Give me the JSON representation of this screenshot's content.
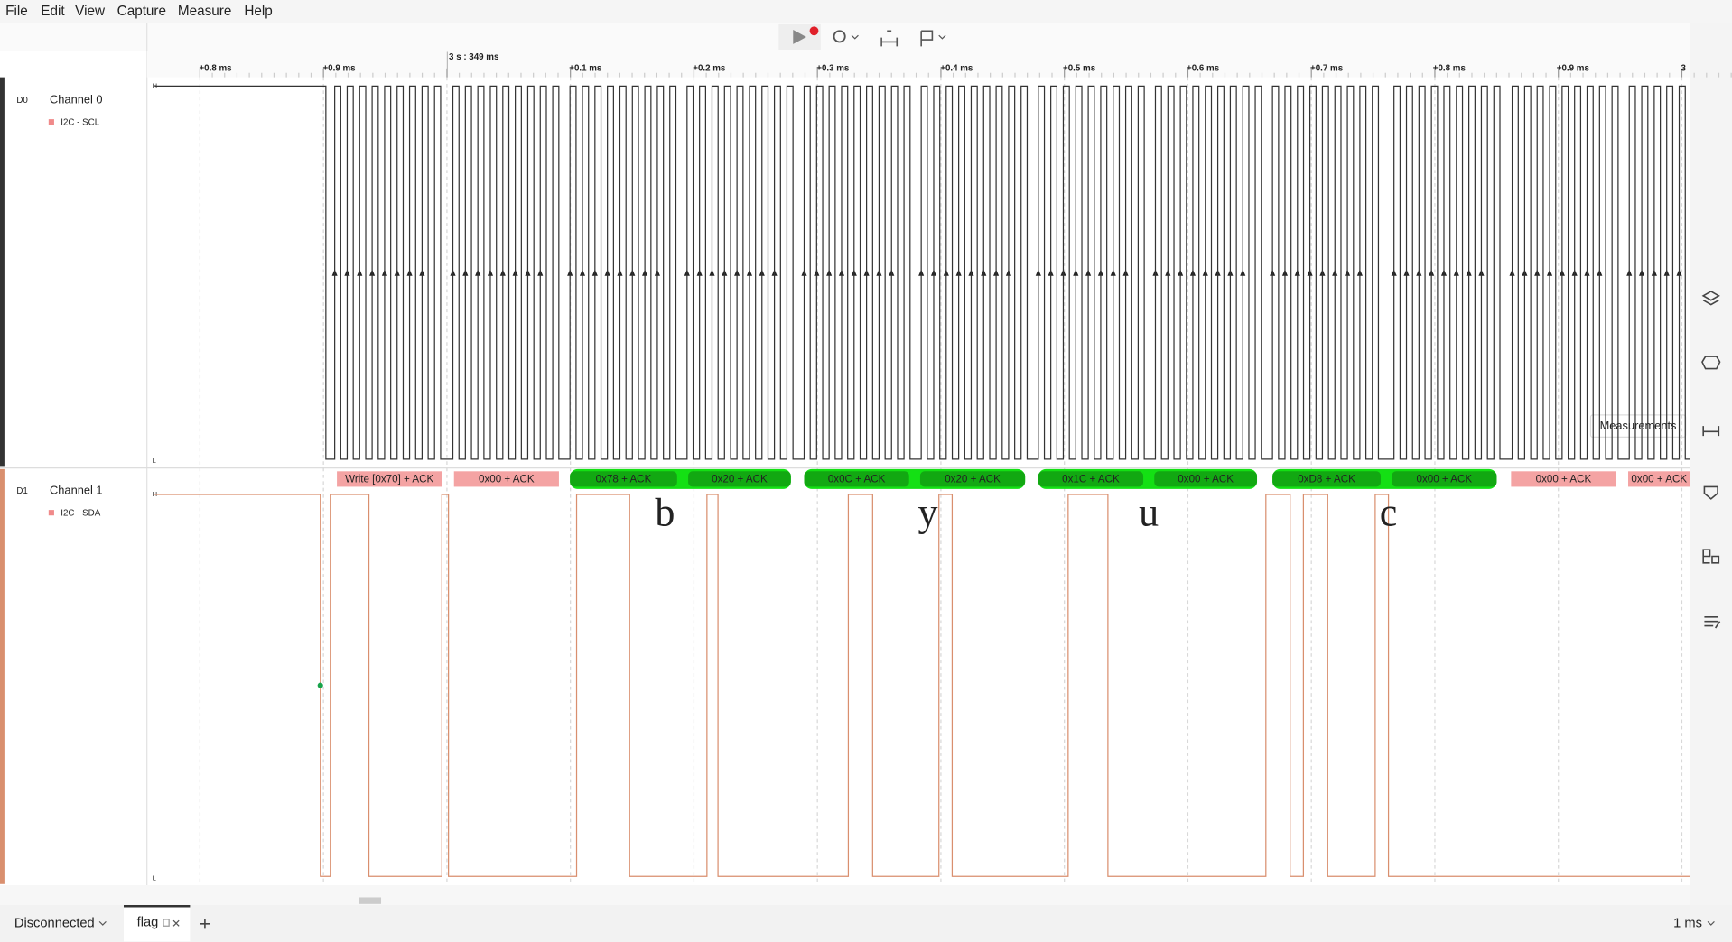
{
  "menu": [
    "File",
    "Edit",
    "View",
    "Capture",
    "Measure",
    "Help"
  ],
  "timeline": {
    "cursor_label": "3 s : 349 ms",
    "ticks": [
      "+0.8 ms",
      "+0.9 ms",
      "+0.1 ms",
      "+0.2 ms",
      "+0.3 ms",
      "+0.4 ms",
      "+0.5 ms",
      "+0.6 ms",
      "+0.7 ms",
      "+0.8 ms",
      "+0.9 ms",
      "3"
    ]
  },
  "channels": [
    {
      "id": "D0",
      "name": "Channel 0",
      "analyzer": "I2C - SCL",
      "high": "H",
      "low": "L"
    },
    {
      "id": "D1",
      "name": "Channel 1",
      "analyzer": "I2C - SDA",
      "high": "H",
      "low": "L"
    }
  ],
  "decoded": [
    "Write [0x70] + ACK",
    "0x00 + ACK",
    "0x78 + ACK",
    "0x20 + ACK",
    "0x0C + ACK",
    "0x20 + ACK",
    "0x1C + ACK",
    "0x00 + ACK",
    "0xD8 + ACK",
    "0x00 + ACK",
    "0x00 + ACK",
    "0x00 + ACK"
  ],
  "annotations": [
    "b",
    "y",
    "u",
    "c"
  ],
  "tooltip": "Measurements",
  "status": {
    "connection": "Disconnected",
    "tab": "flag",
    "zoom": "1 ms"
  }
}
